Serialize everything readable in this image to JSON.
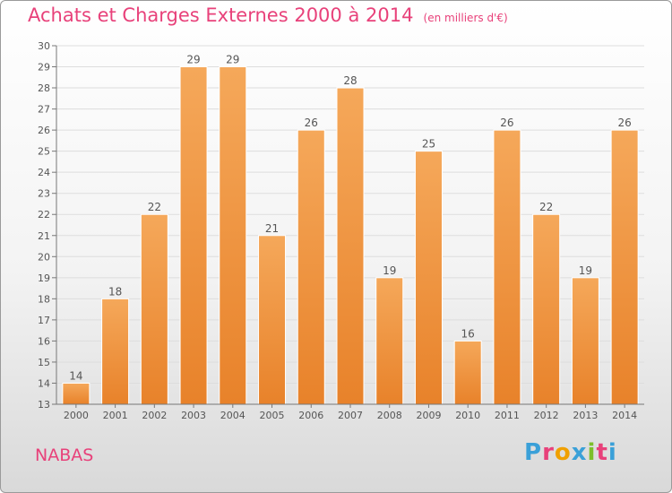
{
  "header": {
    "title": "Achats et Charges Externes 2000 à 2014",
    "subtitle": "(en milliers d'€)"
  },
  "footer": {
    "place": "NABAS",
    "logo": "Proxiti",
    "logo_colors": [
      "#3aa0d8",
      "#e8417a",
      "#f0a000",
      "#3aa0d8",
      "#7cbf2a",
      "#e8417a",
      "#3aa0d8"
    ]
  },
  "colors": {
    "bar": "#e8822a",
    "bar_light": "#f5a85a",
    "axis_text": "#555555",
    "value_text": "#555555",
    "grid": "#dddddd"
  },
  "chart_data": {
    "type": "bar",
    "categories": [
      "2000",
      "2001",
      "2002",
      "2003",
      "2004",
      "2005",
      "2006",
      "2007",
      "2008",
      "2009",
      "2010",
      "2011",
      "2012",
      "2013",
      "2014"
    ],
    "values": [
      14,
      18,
      22,
      29,
      29,
      21,
      26,
      28,
      19,
      25,
      16,
      26,
      22,
      19,
      26
    ],
    "ylim": [
      13,
      30
    ],
    "yticks": [
      "13",
      "14",
      "15",
      "16",
      "17",
      "18",
      "19",
      "20",
      "21",
      "22",
      "23",
      "24",
      "25",
      "26",
      "27",
      "28",
      "29",
      "30"
    ],
    "grid": true,
    "xlabel": "",
    "ylabel": ""
  }
}
